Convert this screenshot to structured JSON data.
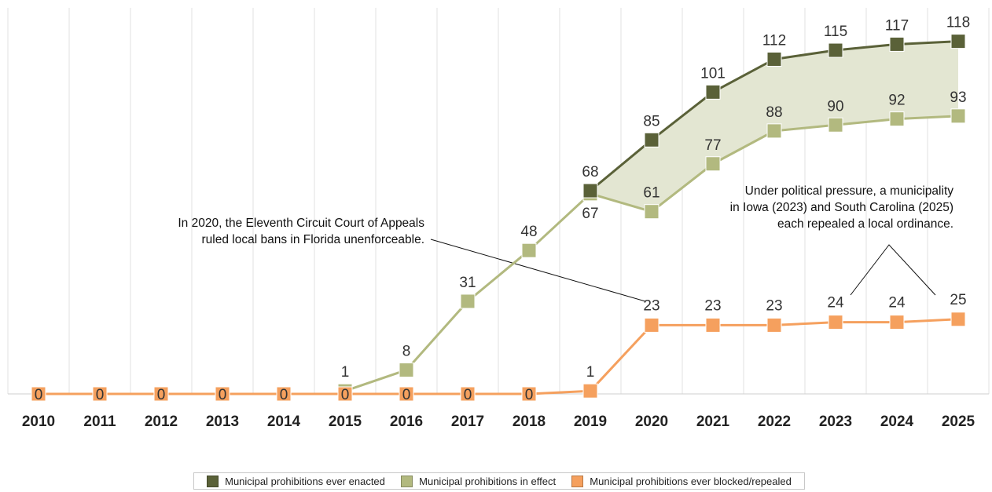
{
  "chart_data": {
    "type": "line",
    "categories": [
      "2010",
      "2011",
      "2012",
      "2013",
      "2014",
      "2015",
      "2016",
      "2017",
      "2018",
      "2019",
      "2020",
      "2021",
      "2022",
      "2023",
      "2024",
      "2025"
    ],
    "ylim": [
      0,
      120
    ],
    "grid": "vertical",
    "legend_position": "bottom",
    "series": [
      {
        "name": "Municipal prohibitions ever enacted",
        "color": "#5a6138",
        "values": [
          null,
          null,
          null,
          null,
          null,
          null,
          null,
          null,
          null,
          68,
          85,
          101,
          112,
          115,
          117,
          118
        ],
        "labels": [
          "",
          "",
          "",
          "",
          "",
          "",
          "",
          "",
          "",
          "68",
          "85",
          "101",
          "112",
          "115",
          "117",
          "118"
        ]
      },
      {
        "name": "Municipal prohibitions in effect",
        "color": "#b2b97f",
        "values": [
          null,
          null,
          null,
          null,
          null,
          1,
          8,
          31,
          48,
          67,
          61,
          77,
          88,
          90,
          92,
          93
        ],
        "labels": [
          "",
          "",
          "",
          "",
          "",
          "1",
          "8",
          "31",
          "48",
          "67",
          "61",
          "77",
          "88",
          "90",
          "92",
          "93"
        ]
      },
      {
        "name": "Municipal prohibitions ever blocked/repealed",
        "color": "#f5a05e",
        "values": [
          0,
          0,
          0,
          0,
          0,
          0,
          0,
          0,
          0,
          1,
          23,
          23,
          23,
          24,
          24,
          25
        ],
        "labels": [
          "0",
          "0",
          "0",
          "0",
          "0",
          "0",
          "0",
          "0",
          "0",
          "1",
          "23",
          "23",
          "23",
          "24",
          "24",
          "25"
        ]
      }
    ],
    "band_fill": "#e3e6d2",
    "annotations": [
      {
        "lines": [
          "In 2020, the Eleventh Circuit Court of Appeals",
          "ruled local bans in Florida unenforceable."
        ]
      },
      {
        "lines": [
          "Under political pressure, a municipality",
          "in Iowa (2023) and South Carolina (2025)",
          "each repealed a local ordinance."
        ]
      }
    ]
  }
}
